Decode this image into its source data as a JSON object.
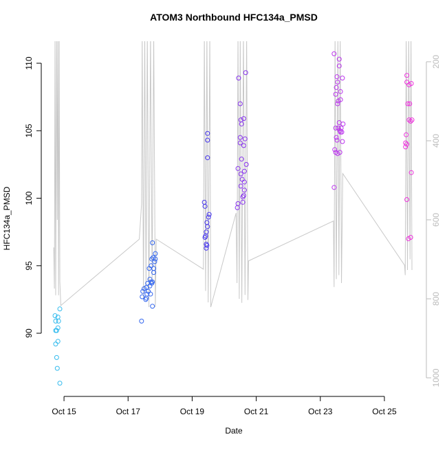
{
  "chart_data": {
    "type": "scatter",
    "title": "ATOM3 Northbound HFC134a_PMSD",
    "x_label": "Date",
    "y_label": "HFC134a_PMSD",
    "xlim": [
      14.29,
      26.31
    ],
    "xticks": [
      {
        "value": 15,
        "label": "Oct 15"
      },
      {
        "value": 17,
        "label": "Oct 17"
      },
      {
        "value": 19,
        "label": "Oct 19"
      },
      {
        "value": 21,
        "label": "Oct 21"
      },
      {
        "value": 23,
        "label": "Oct 23"
      },
      {
        "value": 25,
        "label": "Oct 25"
      }
    ],
    "ylim": [
      85.32,
      111.63
    ],
    "yticks": [
      90,
      95,
      100,
      105,
      110
    ],
    "y2lim": [
      1047,
      148
    ],
    "y2ticks": [
      200,
      400,
      600,
      800,
      1000
    ],
    "y2_color": "#bbbbbb",
    "series": [
      {
        "type": "line",
        "axis": "y2",
        "color": "#c8c8c8",
        "x": [
          14.68,
          14.7,
          14.72,
          14.74,
          14.77,
          14.79,
          14.81,
          14.83,
          14.85,
          14.87,
          14.9,
          17.35,
          17.42,
          17.44,
          17.48,
          17.52,
          17.56,
          17.6,
          17.65,
          17.7,
          17.75,
          17.8,
          17.85,
          17.88,
          19.35,
          19.38,
          19.42,
          19.46,
          19.5,
          19.55,
          19.58,
          20.37,
          20.4,
          20.43,
          20.47,
          20.5,
          20.55,
          20.6,
          20.65,
          20.7,
          20.74,
          20.76,
          23.41,
          23.43,
          23.46,
          23.5,
          23.55,
          23.58,
          23.62,
          23.66,
          23.7,
          25.63,
          25.65,
          25.68,
          25.72,
          25.76,
          25.8,
          25.83,
          25.86
        ],
        "values": [
          670,
          774,
          130,
          791,
          130,
          600,
          130,
          791,
          130,
          756,
          817,
          649,
          560,
          130,
          800,
          130,
          780,
          130,
          821,
          130,
          760,
          130,
          821,
          649,
          725,
          130,
          780,
          130,
          809,
          130,
          821,
          583,
          760,
          130,
          800,
          130,
          810,
          130,
          790,
          130,
          803,
          704,
          603,
          770,
          130,
          750,
          130,
          740,
          130,
          760,
          483,
          715,
          740,
          130,
          727,
          130,
          700,
          130,
          727
        ]
      },
      {
        "type": "scatter",
        "color": "#33bbee",
        "x": [
          14.72,
          14.81,
          14.74,
          14.83,
          14.81,
          14.74,
          14.77,
          14.81,
          14.74,
          14.77,
          14.79,
          14.87,
          14.87
        ],
        "values": [
          91.3,
          91.2,
          90.9,
          90.9,
          90.4,
          90.2,
          90.2,
          89.4,
          89.2,
          88.2,
          87.4,
          86.3,
          91.8
        ]
      },
      {
        "type": "scatter",
        "color": "#3366ee",
        "x": [
          17.42,
          17.44,
          17.46,
          17.5,
          17.55,
          17.57,
          17.59,
          17.61,
          17.63,
          17.66,
          17.68,
          17.68,
          17.7,
          17.72,
          17.72,
          17.74,
          17.76,
          17.76,
          17.76,
          17.78,
          17.8,
          17.8,
          17.83,
          17.85,
          17.85,
          17.74,
          17.57
        ],
        "values": [
          90.9,
          92.7,
          93.1,
          93.3,
          92.5,
          93.4,
          92.9,
          93.7,
          93.1,
          94.8,
          93.5,
          94.0,
          92.9,
          95.0,
          93.8,
          95.5,
          92.0,
          96.7,
          93.8,
          95.6,
          94.8,
          94.5,
          95.3,
          95.5,
          95.9,
          93.7,
          92.6
        ]
      },
      {
        "type": "scatter",
        "color": "#4433ee",
        "x": [
          19.38,
          19.4,
          19.4,
          19.42,
          19.44,
          19.44,
          19.46,
          19.44,
          19.46,
          19.48,
          19.51,
          19.53,
          19.48,
          19.48,
          19.48
        ],
        "values": [
          99.7,
          99.4,
          97.1,
          97.2,
          97.5,
          96.6,
          98.2,
          96.3,
          96.5,
          97.9,
          98.6,
          98.8,
          103.0,
          104.3,
          104.8
        ]
      },
      {
        "type": "scatter",
        "color": "#8833ee",
        "x": [
          20.41,
          20.43,
          20.43,
          20.45,
          20.5,
          20.5,
          20.5,
          20.52,
          20.52,
          20.52,
          20.54,
          20.54,
          20.56,
          20.58,
          20.58,
          20.61,
          20.61,
          20.61,
          20.63,
          20.63,
          20.65,
          20.67,
          20.69,
          20.63
        ],
        "values": [
          99.3,
          99.6,
          102.2,
          108.9,
          107.0,
          104.5,
          104.1,
          105.8,
          101.8,
          100.9,
          105.5,
          102.9,
          101.4,
          100.1,
          99.7,
          100.2,
          105.9,
          103.9,
          102.0,
          100.6,
          104.4,
          109.3,
          102.5,
          101.2
        ]
      },
      {
        "type": "scatter",
        "color": "#bb33ee",
        "x": [
          23.43,
          23.43,
          23.45,
          23.48,
          23.48,
          23.48,
          23.5,
          23.5,
          23.52,
          23.52,
          23.54,
          23.54,
          23.54,
          23.56,
          23.56,
          23.59,
          23.59,
          23.59,
          23.61,
          23.61,
          23.63,
          23.63,
          23.65,
          23.67,
          23.69,
          23.69,
          23.71,
          23.63
        ],
        "values": [
          110.7,
          100.8,
          103.6,
          107.7,
          105.2,
          103.4,
          108.2,
          104.5,
          109.0,
          104.3,
          108.6,
          107.0,
          103.3,
          107.2,
          105.2,
          110.3,
          109.8,
          105.6,
          105.0,
          103.4,
          107.9,
          107.3,
          105.2,
          104.9,
          104.2,
          108.9,
          105.5,
          104.9
        ]
      },
      {
        "type": "scatter",
        "color": "#ee33dd",
        "x": [
          25.66,
          25.66,
          25.68,
          25.7,
          25.7,
          25.7,
          25.7,
          25.73,
          25.75,
          25.77,
          25.77,
          25.79,
          25.82,
          25.82,
          25.84,
          25.84,
          25.86
        ],
        "values": [
          104.1,
          103.8,
          104.7,
          108.6,
          109.1,
          104.0,
          99.9,
          107.0,
          97.0,
          108.4,
          105.8,
          107.0,
          105.7,
          97.1,
          108.5,
          101.9,
          105.8
        ]
      }
    ]
  }
}
